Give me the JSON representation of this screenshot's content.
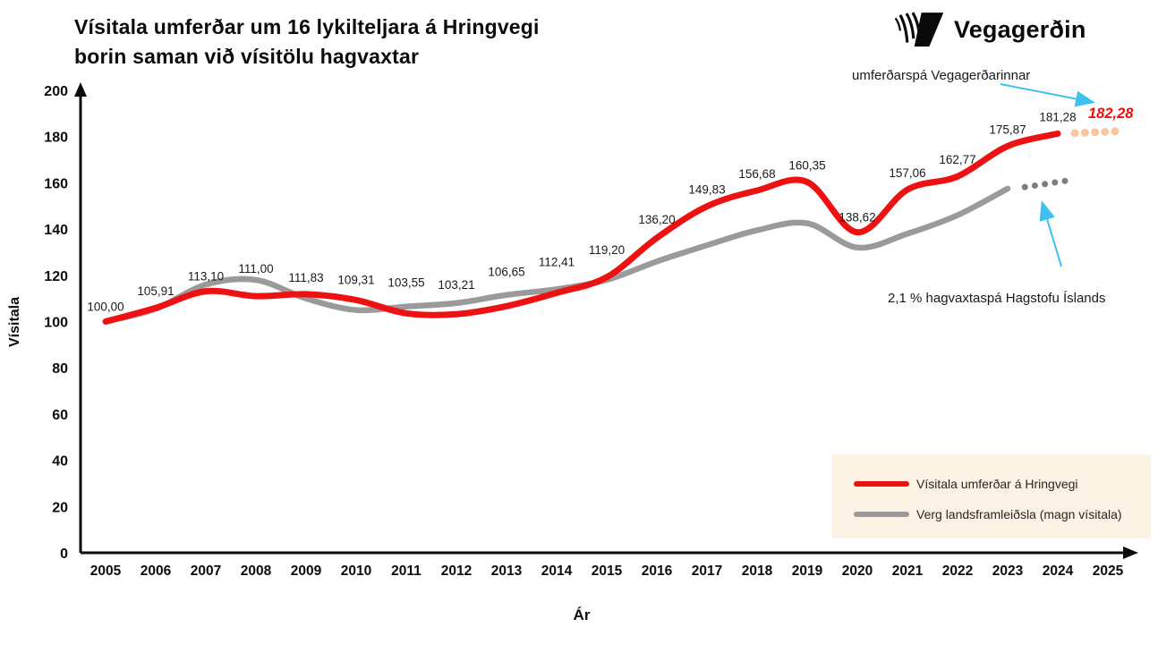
{
  "title": {
    "line1": "Vísitala umferðar um 16 lykilteljara á Hringvegi",
    "line2": "borin saman við vísitölu hagvaxtar"
  },
  "brand": {
    "logo_text": "Vegagerðin"
  },
  "annotations": {
    "traffic_forecast_label": "umferðarspá Vegagerðarinnar",
    "gdp_forecast_label": "2,1 % hagvaxtaspá Hagstofu Íslands",
    "red_forecast_value_label": "182,28",
    "red_forecast_value_color": "#f40b0b",
    "arrow_color": "#3fc1f0"
  },
  "legend": {
    "background": "#fcf3e4",
    "items": [
      {
        "label": "Vísitala umferðar á Hringvegi",
        "color": "#ee1111"
      },
      {
        "label": "Verg landsframleiðsla (magn vísitala)",
        "color": "#9a9a9a"
      }
    ]
  },
  "chart_data": {
    "type": "line",
    "xlabel": "Ár",
    "ylabel": "Vísitala",
    "ylim": [
      0,
      200
    ],
    "y_ticks": [
      0,
      20,
      40,
      60,
      80,
      100,
      120,
      140,
      160,
      180,
      200
    ],
    "x_ticks": [
      2005,
      2006,
      2007,
      2008,
      2009,
      2010,
      2011,
      2012,
      2013,
      2014,
      2015,
      2016,
      2017,
      2018,
      2019,
      2020,
      2021,
      2022,
      2023,
      2024,
      2025
    ],
    "series": [
      {
        "name": "Vísitala umferðar á Hringvegi",
        "color": "#ee1111",
        "stroke_width": 7,
        "x": [
          2005,
          2006,
          2007,
          2008,
          2009,
          2010,
          2011,
          2012,
          2013,
          2014,
          2015,
          2016,
          2017,
          2018,
          2019,
          2020,
          2021,
          2022,
          2023,
          2024
        ],
        "values": [
          100.0,
          105.91,
          113.1,
          111.0,
          111.83,
          109.31,
          103.55,
          103.21,
          106.65,
          112.41,
          119.2,
          136.2,
          149.83,
          156.68,
          160.35,
          138.62,
          157.06,
          162.77,
          175.87,
          181.28
        ],
        "point_labels": [
          "100,00",
          "105,91",
          "113,10",
          "111,00",
          "111,83",
          "109,31",
          "103,55",
          "103,21",
          "106,65",
          "112,41",
          "119,20",
          "136,20",
          "149,83",
          "156,68",
          "160,35",
          "138,62",
          "157,06",
          "162,77",
          "175,87",
          "181,28"
        ],
        "label_dy": [
          -12,
          -14,
          -12,
          -26,
          -14,
          -18,
          -30,
          -28,
          -34,
          -30,
          -26,
          -16,
          -14,
          -14,
          -14,
          -12,
          -14,
          -14,
          -14,
          -14
        ],
        "forecast": {
          "x": [
            2024,
            2025
          ],
          "values": [
            181.28,
            182.28
          ],
          "color": "#f7c7a0",
          "style": "dotted",
          "dot_radius": 4.5
        }
      },
      {
        "name": "Verg landsframleiðsla (magn vísitala)",
        "color": "#9a9a9a",
        "stroke_width": 6.5,
        "x": [
          2005,
          2006,
          2007,
          2008,
          2009,
          2010,
          2011,
          2012,
          2013,
          2014,
          2015,
          2016,
          2017,
          2018,
          2019,
          2020,
          2021,
          2022,
          2023
        ],
        "values": [
          100,
          105.5,
          116,
          118,
          110,
          105,
          106.5,
          108,
          111.5,
          114,
          118,
          126,
          133,
          139.5,
          142.5,
          132,
          138,
          146,
          157.5
        ],
        "point_labels": [],
        "label_dy": [],
        "forecast": {
          "x": [
            2023,
            2024
          ],
          "values": [
            157.5,
            160.8
          ],
          "color": "#7d7d7d",
          "style": "dotted",
          "dot_radius": 3.5
        }
      }
    ]
  }
}
